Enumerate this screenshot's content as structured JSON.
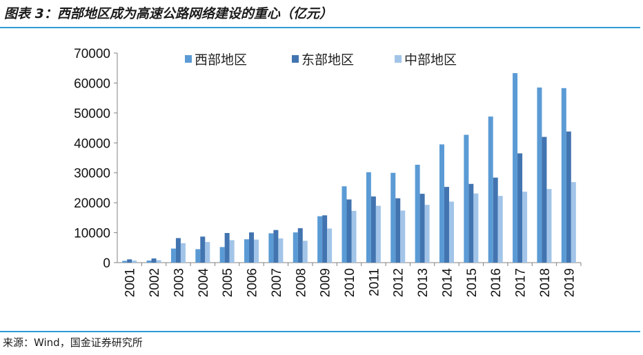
{
  "header": {
    "title": "图表 3：西部地区成为高速公路网络建设的重心（亿元）"
  },
  "footer": {
    "source": "来源：Wind，国金证券研究所"
  },
  "colors": {
    "accent_rule": "#2e9bd6",
    "western": "#5b9bd5",
    "eastern": "#4274b0",
    "central": "#a2c4e8"
  },
  "chart_data": {
    "type": "bar",
    "title": "",
    "xlabel": "",
    "ylabel": "",
    "ylim": [
      0,
      70000
    ],
    "yticks": [
      0,
      10000,
      20000,
      30000,
      40000,
      50000,
      60000,
      70000
    ],
    "grid": false,
    "legend_position": "top-center",
    "categories": [
      "2001",
      "2002",
      "2003",
      "2004",
      "2005",
      "2006",
      "2007",
      "2008",
      "2009",
      "2010",
      "2011",
      "2012",
      "2013",
      "2014",
      "2015",
      "2016",
      "2017",
      "2018",
      "2019"
    ],
    "series": [
      {
        "name": "西部地区",
        "color": "#5b9bd5",
        "values": [
          600,
          700,
          4700,
          4500,
          5200,
          7800,
          9800,
          10100,
          15500,
          25500,
          30200,
          30000,
          32700,
          39500,
          42700,
          48800,
          63300,
          58500,
          58300
        ]
      },
      {
        "name": "东部地区",
        "color": "#4274b0",
        "values": [
          1100,
          1400,
          8200,
          8700,
          9900,
          10100,
          10900,
          11500,
          15800,
          21100,
          22100,
          21500,
          23000,
          25300,
          26300,
          28400,
          36500,
          42000,
          43800
        ]
      },
      {
        "name": "中部地区",
        "color": "#a2c4e8",
        "values": [
          700,
          800,
          6500,
          6900,
          7500,
          7700,
          8100,
          7300,
          11400,
          17300,
          19000,
          17400,
          19300,
          20400,
          23100,
          22300,
          23700,
          24600,
          26900
        ]
      }
    ]
  }
}
